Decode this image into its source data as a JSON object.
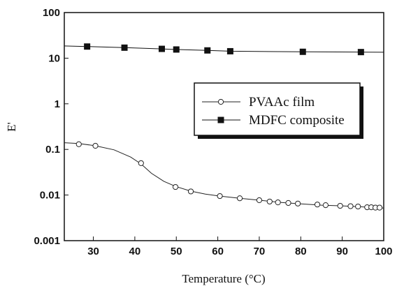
{
  "chart_data": {
    "type": "line",
    "title": "",
    "xlabel": "Temperature (°C)",
    "ylabel": "E'",
    "xlim": [
      23,
      100
    ],
    "ylim": [
      0.001,
      100
    ],
    "yscale": "log",
    "grid": false,
    "legend_position": "center-right",
    "x_ticks": [
      30,
      40,
      50,
      60,
      70,
      80,
      90,
      100
    ],
    "x_tick_labels": [
      "30",
      "40",
      "50",
      "60",
      "70",
      "80",
      "90",
      "100"
    ],
    "y_ticks": [
      100,
      10,
      1,
      0.1,
      0.01,
      0.001
    ],
    "y_tick_labels": [
      "100",
      "10",
      "1",
      "0.1",
      "0.01",
      "0.001"
    ],
    "series": [
      {
        "name": "PVAAc film",
        "marker": "open-circle",
        "color": "#222222",
        "x": [
          26.5,
          30.5,
          41.5,
          49.8,
          53.5,
          60.5,
          65.3,
          70,
          72.5,
          74.5,
          77,
          79.3,
          84,
          86,
          89.5,
          92,
          93.8,
          96,
          97,
          98,
          99
        ],
        "y": [
          0.13,
          0.12,
          0.05,
          0.015,
          0.012,
          0.0095,
          0.0085,
          0.0077,
          0.0072,
          0.0069,
          0.0067,
          0.0065,
          0.0062,
          0.006,
          0.0058,
          0.0057,
          0.0056,
          0.0054,
          0.0054,
          0.0053,
          0.0053
        ],
        "curve_x": [
          23,
          26.5,
          30.5,
          35,
          39,
          41.5,
          44,
          47,
          49.8,
          53.5,
          57,
          60.5,
          65.3,
          70,
          75,
          80,
          85,
          90,
          95,
          100
        ],
        "curve_y": [
          0.14,
          0.135,
          0.12,
          0.098,
          0.068,
          0.048,
          0.03,
          0.02,
          0.0155,
          0.0122,
          0.0105,
          0.0095,
          0.0085,
          0.0077,
          0.0069,
          0.0064,
          0.006,
          0.0058,
          0.0055,
          0.0052
        ]
      },
      {
        "name": "MDFC composite",
        "marker": "filled-square",
        "color": "#111111",
        "x": [
          28.5,
          37.5,
          46.5,
          50,
          57.5,
          63,
          80.5,
          94.5
        ],
        "y": [
          18,
          17,
          16,
          15.5,
          14.8,
          14.2,
          13.8,
          13.6
        ],
        "curve_x": [
          23,
          28.5,
          37.5,
          46.5,
          50,
          57.5,
          63,
          80.5,
          94.5,
          100
        ],
        "curve_y": [
          18.5,
          18,
          17,
          16,
          15.5,
          14.8,
          14.2,
          13.8,
          13.6,
          13.5
        ]
      }
    ]
  }
}
